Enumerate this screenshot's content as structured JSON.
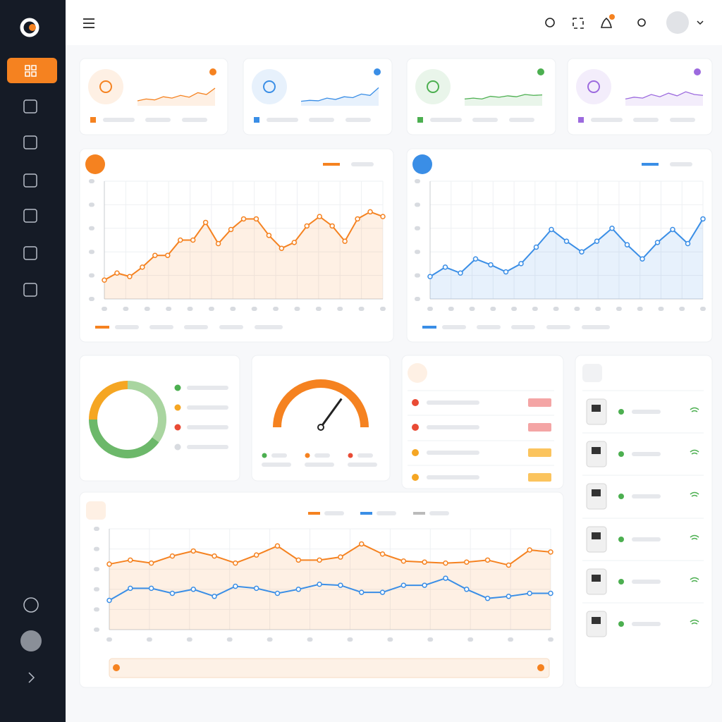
{
  "stat_cards": [
    {
      "color": "#f58220",
      "values": [
        22,
        30,
        26,
        40,
        34,
        46,
        38,
        58,
        50,
        78
      ]
    },
    {
      "color": "#3a8ee6",
      "values": [
        20,
        24,
        22,
        34,
        28,
        40,
        36,
        52,
        46,
        80
      ]
    },
    {
      "color": "#4caf50",
      "values": [
        30,
        34,
        30,
        42,
        38,
        44,
        40,
        50,
        46,
        48
      ]
    },
    {
      "color": "#9c6ade",
      "values": [
        30,
        38,
        34,
        50,
        40,
        56,
        44,
        62,
        50,
        46
      ]
    }
  ],
  "temperature_chart": {
    "type": "line",
    "color": "#f58220",
    "ylim": [
      0,
      100
    ],
    "values": [
      16,
      22,
      19,
      27,
      37,
      37,
      50,
      50,
      65,
      47,
      59,
      68,
      68,
      54,
      43,
      48,
      62,
      70,
      62,
      49,
      68,
      74,
      70
    ]
  },
  "humidity_chart": {
    "type": "line",
    "color": "#3a8ee6",
    "ylim": [
      0,
      100
    ],
    "values": [
      19,
      27,
      22,
      34,
      29,
      23,
      30,
      44,
      59,
      49,
      40,
      49,
      60,
      46,
      34,
      48,
      59,
      47,
      68
    ]
  },
  "status_donut": {
    "type": "pie",
    "values": [
      25,
      35,
      40
    ],
    "colors": [
      "#f5a623",
      "#a9d5a0",
      "#6cb86a"
    ]
  },
  "gauge": {
    "type": "gauge",
    "value": 70,
    "range": [
      0,
      100
    ],
    "color": "#f58220"
  },
  "trend_chart": {
    "type": "line",
    "ylim": [
      0,
      100
    ],
    "series": [
      {
        "color": "#f58220",
        "values": [
          65,
          69,
          66,
          73,
          78,
          73,
          66,
          74,
          83,
          69,
          69,
          72,
          85,
          75,
          68,
          67,
          66,
          67,
          69,
          64,
          79,
          77
        ]
      },
      {
        "color": "#3a8ee6",
        "values": [
          29,
          41,
          41,
          36,
          40,
          33,
          43,
          41,
          36,
          40,
          45,
          44,
          37,
          37,
          44,
          44,
          51,
          40,
          31,
          33,
          36,
          36
        ]
      }
    ]
  }
}
